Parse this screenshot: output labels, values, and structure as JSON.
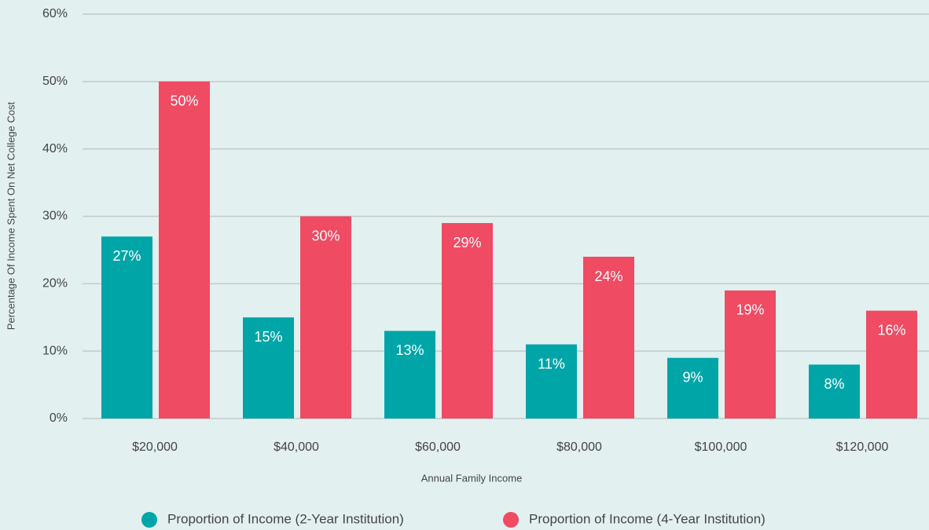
{
  "chart_data": {
    "type": "bar",
    "x_label": "Annual Family Income",
    "y_label": "Percentage Of Income Spent On Net College Cost",
    "categories": [
      "$20,000",
      "$40,000",
      "$60,000",
      "$80,000",
      "$100,000",
      "$120,000"
    ],
    "series": [
      {
        "name": "Proportion of Income (2-Year Institution)",
        "color": "#00a5a8",
        "values": [
          27,
          15,
          13,
          11,
          9,
          8
        ],
        "value_labels": [
          "27%",
          "15%",
          "13%",
          "11%",
          "9%",
          "8%"
        ]
      },
      {
        "name": "Proportion of Income (4-Year Institution)",
        "color": "#ef4b63",
        "values": [
          50,
          30,
          29,
          24,
          19,
          16
        ],
        "value_labels": [
          "50%",
          "30%",
          "29%",
          "24%",
          "19%",
          "16%"
        ]
      }
    ],
    "ylim": [
      0,
      60
    ],
    "yticks": [
      {
        "value": 0,
        "label": "0%"
      },
      {
        "value": 10,
        "label": "10%"
      },
      {
        "value": 20,
        "label": "20%"
      },
      {
        "value": 30,
        "label": "30%"
      },
      {
        "value": 40,
        "label": "40%"
      },
      {
        "value": 50,
        "label": "50%"
      },
      {
        "value": 60,
        "label": "60%"
      }
    ],
    "grid": true,
    "legend": "bottom"
  }
}
